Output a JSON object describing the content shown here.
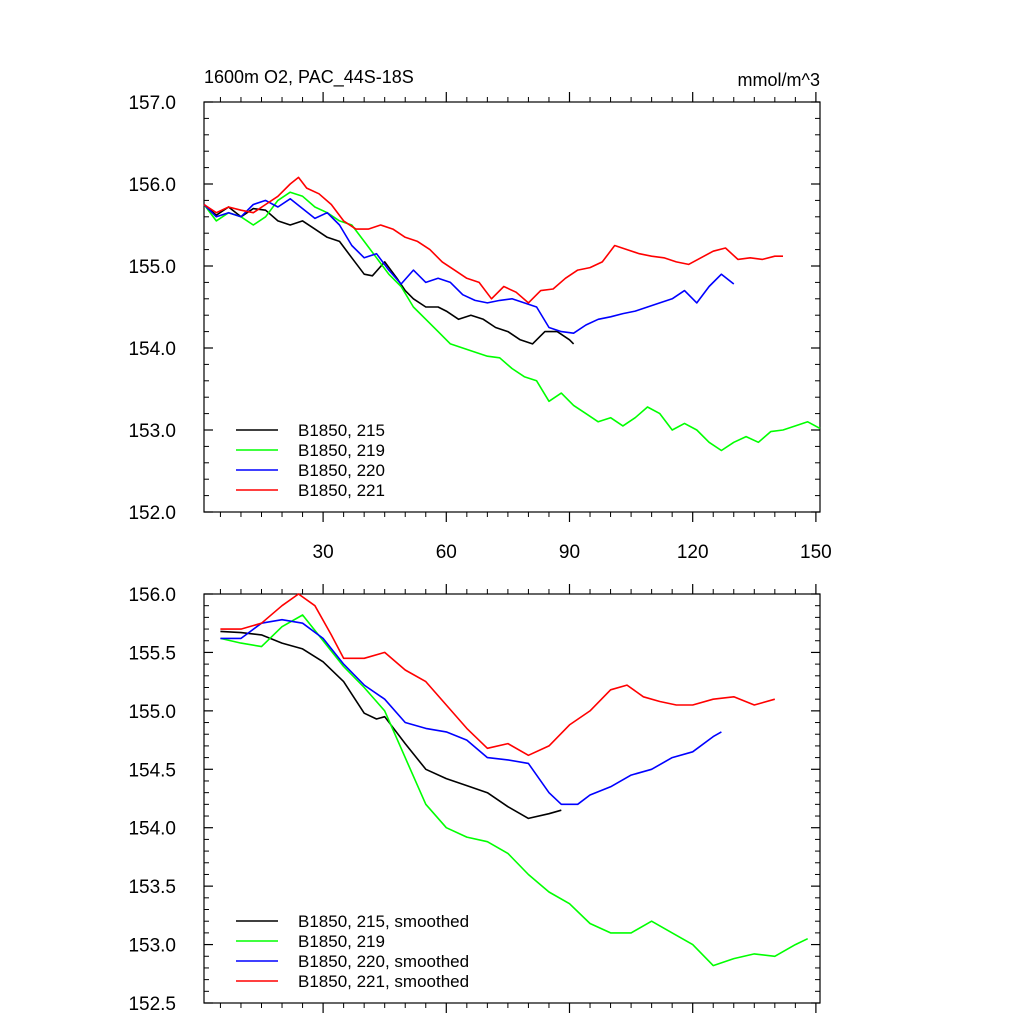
{
  "figure": {
    "title_left": "1600m O2, PAC_44S-18S",
    "title_right": "mmol/m^3"
  },
  "chart_data": [
    {
      "type": "line",
      "title": "1600m O2, PAC_44S-18S",
      "units": "mmol/m^3",
      "xlim": [
        1,
        151
      ],
      "ylim": [
        152.0,
        157.0
      ],
      "x_ticks": [
        30,
        60,
        90,
        120,
        150
      ],
      "y_ticks": [
        152.0,
        153.0,
        154.0,
        155.0,
        156.0,
        157.0
      ],
      "y_tick_labels": [
        "152.0",
        "153.0",
        "154.0",
        "155.0",
        "156.0",
        "157.0"
      ],
      "legend_position": "bottom-left",
      "grid": false,
      "series": [
        {
          "name": "B1850, 215",
          "color": "#000000",
          "x": [
            1,
            4,
            7,
            10,
            13,
            16,
            19,
            22,
            25,
            28,
            31,
            34,
            37,
            40,
            42,
            45,
            48,
            50,
            52,
            55,
            58,
            60,
            63,
            66,
            69,
            72,
            75,
            78,
            81,
            84,
            87,
            90,
            91
          ],
          "y": [
            155.75,
            155.62,
            155.72,
            155.6,
            155.7,
            155.68,
            155.55,
            155.5,
            155.55,
            155.45,
            155.35,
            155.3,
            155.1,
            154.9,
            154.88,
            155.05,
            154.85,
            154.7,
            154.6,
            154.5,
            154.5,
            154.45,
            154.35,
            154.4,
            154.35,
            154.25,
            154.2,
            154.1,
            154.05,
            154.2,
            154.2,
            154.1,
            154.05
          ]
        },
        {
          "name": "B1850, 219",
          "color": "#00ff00",
          "x": [
            1,
            4,
            7,
            10,
            13,
            16,
            19,
            22,
            25,
            28,
            31,
            34,
            37,
            40,
            43,
            46,
            49,
            52,
            55,
            58,
            61,
            64,
            67,
            70,
            73,
            76,
            79,
            82,
            85,
            88,
            91,
            94,
            97,
            100,
            103,
            106,
            109,
            112,
            115,
            118,
            121,
            124,
            127,
            130,
            133,
            136,
            139,
            142,
            145,
            148,
            151
          ],
          "y": [
            155.75,
            155.55,
            155.65,
            155.6,
            155.5,
            155.6,
            155.8,
            155.9,
            155.85,
            155.72,
            155.65,
            155.55,
            155.5,
            155.3,
            155.1,
            154.9,
            154.75,
            154.5,
            154.35,
            154.2,
            154.05,
            154.0,
            153.95,
            153.9,
            153.88,
            153.75,
            153.65,
            153.6,
            153.35,
            153.45,
            153.3,
            153.2,
            153.1,
            153.15,
            153.05,
            153.15,
            153.28,
            153.2,
            153.0,
            153.08,
            153.0,
            152.85,
            152.75,
            152.85,
            152.92,
            152.85,
            152.98,
            153.0,
            153.05,
            153.1,
            153.02
          ]
        },
        {
          "name": "B1850, 220",
          "color": "#0000ff",
          "x": [
            1,
            4,
            7,
            10,
            13,
            16,
            19,
            22,
            25,
            28,
            31,
            34,
            37,
            40,
            43,
            46,
            49,
            52,
            55,
            58,
            61,
            64,
            67,
            70,
            73,
            76,
            79,
            82,
            85,
            88,
            91,
            94,
            97,
            100,
            103,
            106,
            109,
            112,
            115,
            118,
            121,
            124,
            127,
            130
          ],
          "y": [
            155.75,
            155.6,
            155.65,
            155.6,
            155.75,
            155.8,
            155.72,
            155.82,
            155.7,
            155.58,
            155.65,
            155.5,
            155.25,
            155.1,
            155.15,
            154.95,
            154.78,
            154.95,
            154.8,
            154.85,
            154.8,
            154.65,
            154.58,
            154.55,
            154.58,
            154.6,
            154.55,
            154.5,
            154.25,
            154.2,
            154.18,
            154.28,
            154.35,
            154.38,
            154.42,
            154.45,
            154.5,
            154.55,
            154.6,
            154.7,
            154.55,
            154.75,
            154.9,
            154.78
          ]
        },
        {
          "name": "B1850, 221",
          "color": "#ff0000",
          "x": [
            1,
            4,
            7,
            10,
            13,
            16,
            19,
            22,
            24,
            26,
            29,
            32,
            35,
            38,
            41,
            44,
            47,
            50,
            53,
            56,
            59,
            62,
            65,
            68,
            71,
            74,
            77,
            80,
            83,
            86,
            89,
            92,
            95,
            98,
            101,
            104,
            107,
            110,
            113,
            116,
            119,
            122,
            125,
            128,
            131,
            134,
            137,
            140,
            142
          ],
          "y": [
            155.75,
            155.65,
            155.72,
            155.68,
            155.65,
            155.75,
            155.85,
            156.0,
            156.08,
            155.95,
            155.88,
            155.75,
            155.55,
            155.45,
            155.45,
            155.5,
            155.45,
            155.35,
            155.3,
            155.2,
            155.05,
            154.95,
            154.85,
            154.8,
            154.6,
            154.75,
            154.68,
            154.55,
            154.7,
            154.72,
            154.85,
            154.95,
            154.98,
            155.05,
            155.25,
            155.2,
            155.15,
            155.12,
            155.1,
            155.05,
            155.02,
            155.1,
            155.18,
            155.22,
            155.08,
            155.1,
            155.08,
            155.12,
            155.12
          ]
        }
      ]
    },
    {
      "type": "line",
      "xlim": [
        1,
        151
      ],
      "ylim": [
        152.5,
        156.0
      ],
      "x_ticks": [
        30,
        60,
        90,
        120,
        150
      ],
      "y_ticks": [
        152.5,
        153.0,
        153.5,
        154.0,
        154.5,
        155.0,
        155.5,
        156.0
      ],
      "y_tick_labels": [
        "152.5",
        "153.0",
        "153.5",
        "154.0",
        "154.5",
        "155.0",
        "155.5",
        "156.0"
      ],
      "legend_position": "bottom-left",
      "grid": false,
      "series": [
        {
          "name": "B1850, 215, smoothed",
          "color": "#000000",
          "x": [
            5,
            10,
            15,
            20,
            25,
            30,
            35,
            40,
            43,
            45,
            50,
            55,
            60,
            65,
            70,
            75,
            80,
            85,
            88
          ],
          "y": [
            155.68,
            155.67,
            155.65,
            155.58,
            155.53,
            155.42,
            155.25,
            154.98,
            154.93,
            154.95,
            154.72,
            154.5,
            154.42,
            154.36,
            154.3,
            154.18,
            154.08,
            154.12,
            154.15
          ]
        },
        {
          "name": "B1850, 219",
          "color": "#00ff00",
          "x": [
            5,
            10,
            15,
            20,
            25,
            30,
            35,
            40,
            45,
            50,
            55,
            60,
            65,
            70,
            75,
            80,
            85,
            90,
            95,
            100,
            105,
            110,
            115,
            120,
            125,
            130,
            135,
            140,
            145,
            148
          ],
          "y": [
            155.62,
            155.58,
            155.55,
            155.72,
            155.82,
            155.6,
            155.38,
            155.2,
            155.0,
            154.6,
            154.2,
            154.0,
            153.92,
            153.88,
            153.78,
            153.6,
            153.45,
            153.35,
            153.18,
            153.1,
            153.1,
            153.2,
            153.1,
            153.0,
            152.82,
            152.88,
            152.92,
            152.9,
            153.0,
            153.05
          ]
        },
        {
          "name": "B1850, 220, smoothed",
          "color": "#0000ff",
          "x": [
            5,
            10,
            15,
            20,
            25,
            30,
            35,
            40,
            45,
            50,
            55,
            60,
            65,
            70,
            75,
            80,
            85,
            88,
            92,
            95,
            100,
            105,
            110,
            115,
            120,
            125,
            127
          ],
          "y": [
            155.62,
            155.62,
            155.75,
            155.78,
            155.75,
            155.62,
            155.4,
            155.22,
            155.1,
            154.9,
            154.85,
            154.82,
            154.75,
            154.6,
            154.58,
            154.55,
            154.3,
            154.2,
            154.2,
            154.28,
            154.35,
            154.45,
            154.5,
            154.6,
            154.65,
            154.78,
            154.82
          ]
        },
        {
          "name": "B1850, 221, smoothed",
          "color": "#ff0000",
          "x": [
            5,
            10,
            15,
            20,
            24,
            28,
            32,
            35,
            40,
            45,
            50,
            55,
            60,
            65,
            70,
            75,
            80,
            85,
            90,
            95,
            100,
            104,
            108,
            112,
            116,
            120,
            125,
            130,
            135,
            140
          ],
          "y": [
            155.7,
            155.7,
            155.75,
            155.9,
            156.0,
            155.9,
            155.65,
            155.45,
            155.45,
            155.5,
            155.35,
            155.25,
            155.05,
            154.85,
            154.68,
            154.72,
            154.62,
            154.7,
            154.88,
            155.0,
            155.18,
            155.22,
            155.12,
            155.08,
            155.05,
            155.05,
            155.1,
            155.12,
            155.05,
            155.1
          ]
        }
      ]
    }
  ]
}
